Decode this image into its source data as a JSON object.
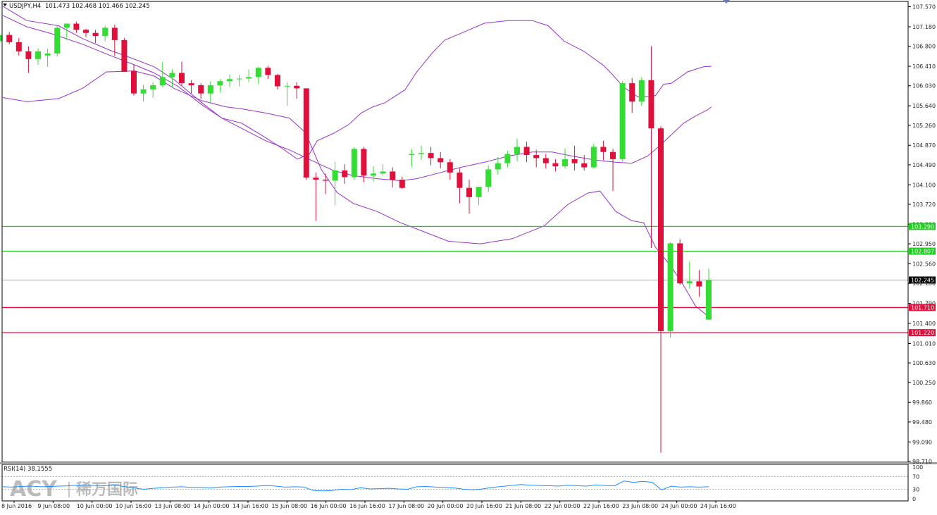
{
  "chart_data": {
    "type": "candlestick",
    "symbol_header": "USDJPY,H4",
    "ohlc_header": "101.473 102.468 101.466 102.245",
    "y_ticks": [
      "107.570",
      "107.180",
      "106.800",
      "106.410",
      "106.030",
      "105.640",
      "105.260",
      "104.870",
      "104.490",
      "104.100",
      "103.720",
      "103.330",
      "102.950",
      "102.560",
      "102.180",
      "101.790",
      "101.400",
      "101.010",
      "100.630",
      "100.250",
      "99.860",
      "99.480",
      "99.090",
      "98.710"
    ],
    "ylim": [
      98.71,
      107.66
    ],
    "x_labels": [
      "8 Jun 2016",
      "9 Jun 08:00",
      "10 Jun 00:00",
      "10 Jun 16:00",
      "13 Jun 08:00",
      "14 Jun 00:00",
      "14 Jun 16:00",
      "15 Jun 08:00",
      "16 Jun 00:00",
      "16 Jun 16:00",
      "17 Jun 08:00",
      "20 Jun 00:00",
      "20 Jun 16:00",
      "21 Jun 08:00",
      "22 Jun 00:00",
      "22 Jun 16:00",
      "23 Jun 08:00",
      "24 Jun 00:00",
      "24 Jun 16:00"
    ],
    "candles": [
      [
        106.84,
        106.98,
        106.72,
        106.9
      ],
      [
        106.9,
        107.06,
        106.78,
        107.02
      ],
      [
        107.02,
        107.08,
        106.84,
        106.88
      ],
      [
        106.88,
        106.96,
        106.62,
        106.7
      ],
      [
        106.7,
        106.8,
        106.28,
        106.55
      ],
      [
        106.55,
        106.76,
        106.44,
        106.7
      ],
      [
        106.62,
        106.75,
        106.4,
        106.66
      ],
      [
        106.66,
        107.2,
        106.6,
        107.16
      ],
      [
        107.16,
        107.24,
        106.92,
        107.24
      ],
      [
        107.24,
        107.28,
        107.06,
        107.12
      ],
      [
        107.12,
        107.14,
        106.98,
        107.06
      ],
      [
        107.06,
        107.12,
        106.86,
        107.0
      ],
      [
        107.0,
        107.2,
        106.9,
        107.16
      ],
      [
        107.16,
        107.22,
        106.62,
        106.92
      ],
      [
        106.92,
        106.96,
        106.32,
        106.3
      ],
      [
        106.32,
        106.44,
        105.84,
        105.88
      ],
      [
        105.88,
        106.05,
        105.72,
        105.96
      ],
      [
        105.96,
        106.1,
        105.8,
        106.04
      ],
      [
        106.04,
        106.5,
        106.0,
        106.2
      ],
      [
        106.2,
        106.35,
        106.0,
        106.28
      ],
      [
        106.28,
        106.5,
        106.02,
        106.08
      ],
      [
        106.08,
        106.14,
        105.88,
        106.04
      ],
      [
        106.04,
        106.08,
        105.78,
        105.88
      ],
      [
        105.88,
        106.12,
        105.7,
        106.04
      ],
      [
        106.04,
        106.16,
        105.9,
        106.12
      ],
      [
        106.12,
        106.25,
        106.0,
        106.16
      ],
      [
        106.16,
        106.24,
        106.02,
        106.17
      ],
      [
        106.17,
        106.35,
        106.1,
        106.2
      ],
      [
        106.2,
        106.4,
        106.06,
        106.38
      ],
      [
        106.38,
        106.42,
        106.16,
        106.24
      ],
      [
        106.24,
        106.26,
        105.96,
        106.02
      ],
      [
        106.02,
        106.1,
        105.64,
        106.03
      ],
      [
        106.03,
        106.1,
        105.78,
        105.98
      ],
      [
        105.98,
        105.98,
        104.2,
        104.24
      ],
      [
        104.24,
        104.34,
        103.4,
        104.2
      ],
      [
        104.2,
        104.32,
        103.92,
        104.18
      ],
      [
        104.18,
        104.55,
        103.7,
        104.38
      ],
      [
        104.38,
        104.5,
        104.12,
        104.25
      ],
      [
        104.25,
        104.84,
        104.2,
        104.8
      ],
      [
        104.8,
        104.84,
        104.15,
        104.28
      ],
      [
        104.28,
        104.46,
        104.16,
        104.32
      ],
      [
        104.32,
        104.5,
        104.28,
        104.36
      ],
      [
        104.36,
        104.44,
        104.05,
        104.2
      ],
      [
        104.2,
        104.26,
        104.02,
        104.04
      ],
      [
        104.68,
        104.8,
        104.45,
        104.7
      ],
      [
        104.7,
        104.86,
        104.58,
        104.72
      ],
      [
        104.72,
        104.84,
        104.48,
        104.62
      ],
      [
        104.62,
        104.74,
        104.42,
        104.54
      ],
      [
        104.54,
        104.6,
        104.2,
        104.34
      ],
      [
        104.34,
        104.42,
        103.74,
        104.04
      ],
      [
        104.04,
        104.2,
        103.54,
        103.86
      ],
      [
        103.86,
        104.06,
        103.7,
        104.06
      ],
      [
        104.06,
        104.48,
        103.96,
        104.4
      ],
      [
        104.4,
        104.64,
        104.3,
        104.52
      ],
      [
        104.52,
        104.76,
        104.44,
        104.7
      ],
      [
        104.7,
        105.0,
        104.56,
        104.84
      ],
      [
        104.84,
        104.94,
        104.54,
        104.68
      ],
      [
        104.68,
        104.78,
        104.44,
        104.62
      ],
      [
        104.62,
        104.7,
        104.42,
        104.52
      ],
      [
        104.52,
        104.6,
        104.36,
        104.46
      ],
      [
        104.46,
        104.8,
        104.42,
        104.6
      ],
      [
        104.6,
        104.86,
        104.38,
        104.52
      ],
      [
        104.52,
        104.68,
        104.38,
        104.44
      ],
      [
        104.44,
        104.9,
        104.42,
        104.84
      ],
      [
        104.84,
        104.96,
        104.58,
        104.74
      ],
      [
        104.74,
        104.8,
        103.98,
        104.6
      ],
      [
        104.6,
        106.12,
        104.56,
        106.08
      ],
      [
        106.08,
        106.18,
        105.5,
        105.72
      ],
      [
        105.72,
        106.2,
        105.64,
        106.14
      ],
      [
        106.14,
        106.8,
        102.87,
        105.2
      ],
      [
        105.2,
        105.24,
        98.88,
        101.25
      ],
      [
        101.25,
        102.98,
        101.12,
        102.96
      ],
      [
        102.96,
        103.04,
        102.15,
        102.18
      ],
      [
        102.18,
        102.6,
        102.08,
        102.22
      ],
      [
        102.22,
        102.44,
        101.92,
        102.12
      ],
      [
        101.473,
        102.468,
        101.466,
        102.245
      ]
    ],
    "bollinger_upper": [
      [
        0,
        107.58
      ],
      [
        6,
        107.3
      ],
      [
        14,
        107.2
      ],
      [
        20,
        106.95
      ],
      [
        27,
        106.72
      ],
      [
        33,
        106.55
      ],
      [
        38,
        106.4
      ],
      [
        43,
        106.15
      ],
      [
        50,
        105.7
      ],
      [
        55,
        105.4
      ],
      [
        60,
        105.3
      ],
      [
        66,
        105.02
      ],
      [
        70,
        104.82
      ],
      [
        74,
        104.6
      ],
      [
        77,
        104.7
      ],
      [
        79,
        104.96
      ],
      [
        83,
        105.1
      ],
      [
        87,
        105.28
      ],
      [
        90,
        105.5
      ],
      [
        93,
        105.62
      ],
      [
        96,
        105.7
      ],
      [
        101,
        105.95
      ],
      [
        104,
        106.3
      ],
      [
        108,
        106.68
      ],
      [
        111,
        106.92
      ],
      [
        115,
        107.05
      ],
      [
        121,
        107.25
      ],
      [
        127,
        107.3
      ],
      [
        133,
        107.3
      ],
      [
        137,
        107.2
      ],
      [
        141,
        106.9
      ],
      [
        146,
        106.7
      ],
      [
        151,
        106.42
      ],
      [
        153,
        106.26
      ],
      [
        156,
        106.0
      ],
      [
        159,
        105.84
      ],
      [
        160,
        105.8
      ],
      [
        164,
        105.84
      ],
      [
        166,
        106.06
      ],
      [
        168,
        106.08
      ],
      [
        172,
        106.3
      ],
      [
        176,
        106.4
      ],
      [
        178,
        106.41
      ]
    ],
    "bollinger_middle": [
      [
        0,
        107.4
      ],
      [
        6,
        107.18
      ],
      [
        12,
        107.05
      ],
      [
        20,
        106.84
      ],
      [
        27,
        106.62
      ],
      [
        33,
        106.44
      ],
      [
        38,
        106.28
      ],
      [
        44,
        106.02
      ],
      [
        50,
        105.66
      ],
      [
        55,
        105.4
      ],
      [
        60,
        105.2
      ],
      [
        66,
        104.96
      ],
      [
        72,
        104.78
      ],
      [
        78,
        104.56
      ],
      [
        83,
        104.38
      ],
      [
        88,
        104.28
      ],
      [
        94,
        104.22
      ],
      [
        100,
        104.18
      ],
      [
        104,
        104.22
      ],
      [
        109,
        104.32
      ],
      [
        115,
        104.44
      ],
      [
        121,
        104.54
      ],
      [
        127,
        104.66
      ],
      [
        133,
        104.74
      ],
      [
        138,
        104.74
      ],
      [
        143,
        104.66
      ],
      [
        149,
        104.58
      ],
      [
        154,
        104.54
      ],
      [
        158,
        104.52
      ],
      [
        162,
        104.66
      ],
      [
        165,
        104.86
      ],
      [
        168,
        105.08
      ],
      [
        171,
        105.3
      ],
      [
        174,
        105.44
      ],
      [
        177,
        105.56
      ],
      [
        178,
        105.62
      ]
    ],
    "bollinger_lower": [
      [
        0,
        105.8
      ],
      [
        6,
        105.72
      ],
      [
        14,
        105.78
      ],
      [
        20,
        105.98
      ],
      [
        26,
        106.3
      ],
      [
        33,
        106.32
      ],
      [
        38,
        106.22
      ],
      [
        43,
        105.98
      ],
      [
        50,
        105.74
      ],
      [
        56,
        105.62
      ],
      [
        60,
        105.58
      ],
      [
        66,
        105.5
      ],
      [
        72,
        105.4
      ],
      [
        76,
        105.12
      ],
      [
        80,
        104.4
      ],
      [
        84,
        103.95
      ],
      [
        88,
        103.74
      ],
      [
        94,
        103.58
      ],
      [
        100,
        103.36
      ],
      [
        106,
        103.18
      ],
      [
        112,
        103.0
      ],
      [
        120,
        102.95
      ],
      [
        128,
        103.05
      ],
      [
        136,
        103.3
      ],
      [
        142,
        103.72
      ],
      [
        147,
        103.94
      ],
      [
        150,
        103.98
      ],
      [
        154,
        103.58
      ],
      [
        158,
        103.4
      ],
      [
        161,
        103.36
      ],
      [
        164,
        102.88
      ],
      [
        168,
        102.5
      ],
      [
        171,
        102.14
      ],
      [
        174,
        101.74
      ],
      [
        177,
        101.55
      ],
      [
        178,
        101.48
      ]
    ],
    "levels": [
      {
        "value": 103.29,
        "label": "103.290",
        "color": "#22cc22"
      },
      {
        "value": 102.807,
        "label": "102.807",
        "color": "#22cc22"
      },
      {
        "value": 102.245,
        "label": "102.245",
        "color": "#000000"
      },
      {
        "value": 101.71,
        "label": "101.710",
        "color": "#e0103c"
      },
      {
        "value": 101.22,
        "label": "101.220",
        "color": "#e0103c"
      }
    ],
    "colors": {
      "bull": "#33dd33",
      "bear": "#e0103c",
      "band": "#9932cc",
      "rsi": "#1e90ff",
      "background": "#ffffff"
    },
    "rsi": {
      "label": "RSI(14) 38.1555",
      "ticks": [
        "100",
        "70",
        "30",
        "0"
      ],
      "levels": [
        70,
        30
      ],
      "values": [
        38,
        37,
        39,
        40,
        38,
        39,
        40,
        41,
        43,
        42,
        42,
        41,
        43,
        38,
        34,
        30,
        33,
        35,
        37,
        38,
        36,
        36,
        34,
        37,
        38,
        39,
        39,
        40,
        42,
        40,
        37,
        38,
        37,
        26,
        25,
        26,
        30,
        29,
        35,
        31,
        32,
        33,
        31,
        30,
        38,
        39,
        37,
        36,
        34,
        30,
        28,
        31,
        36,
        39,
        42,
        45,
        43,
        42,
        41,
        40,
        43,
        41,
        40,
        44,
        42,
        41,
        56,
        52,
        55,
        52,
        28,
        40,
        37,
        38,
        37,
        38
      ]
    },
    "watermark": {
      "latin": "ACY",
      "cjk": "稀万国际"
    }
  }
}
